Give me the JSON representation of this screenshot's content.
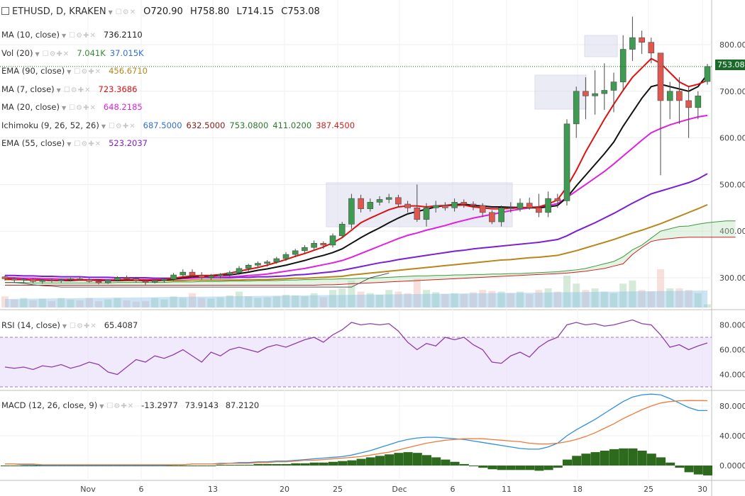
{
  "header": {
    "symbol": "ETHUSD, D, KRAKEN",
    "open": "O720.90",
    "high": "H758.80",
    "low": "L714.15",
    "close": "C753.08"
  },
  "legends": [
    {
      "key": "ma10",
      "label": "MA (10, close)",
      "values": [
        "736.2110"
      ],
      "colors": [
        "#222222"
      ]
    },
    {
      "key": "vol",
      "label": "Vol (20)",
      "values": [
        "7.041K",
        "37.015K"
      ],
      "colors": [
        "#3a8a3a",
        "#2f6fd6"
      ]
    },
    {
      "key": "ema90",
      "label": "EMA (90, close)",
      "values": [
        "456.6710"
      ],
      "colors": [
        "#b8861b"
      ]
    },
    {
      "key": "ma7",
      "label": "MA (7, close)",
      "values": [
        "723.3686"
      ],
      "colors": [
        "#e01010"
      ]
    },
    {
      "key": "ma20",
      "label": "MA (20, close)",
      "values": [
        "648.2185"
      ],
      "colors": [
        "#e020e0"
      ]
    },
    {
      "key": "ichi",
      "label": "Ichimoku (9, 26, 52, 26)",
      "values": [
        "687.5000",
        "632.5000",
        "753.0800",
        "411.0200",
        "387.4500"
      ],
      "colors": [
        "#2f6fd6",
        "#8b1a1a",
        "#2a7a2a",
        "#2a7a2a",
        "#d02020"
      ]
    },
    {
      "key": "ema55",
      "label": "EMA (55, close)",
      "values": [
        "523.2037"
      ],
      "colors": [
        "#7b1fd6"
      ]
    }
  ],
  "rsi_legend": {
    "label": "RSI (14, close)",
    "value": "65.4087",
    "color": "#222222"
  },
  "macd_legend": {
    "label": "MACD (12, 26, close, 9)",
    "values": [
      "-13.2977",
      "73.9143",
      "87.2120"
    ],
    "colors": [
      "#2a7a2a",
      "#2f6fd6",
      "#e0602a"
    ]
  },
  "price_badge": "753.08",
  "colors": {
    "up": "#3f9a52",
    "down": "#e0574f",
    "ma10": "#111111",
    "ma7": "#e01010",
    "ma20": "#e020e0",
    "ema55": "#7b1fd6",
    "ema90": "#b8861b",
    "rsi": "#8e3ea8",
    "macd": "#2f8fe0",
    "signal": "#f07a3a",
    "hist": "#2d6a1e",
    "volume": "#8fc3e6"
  },
  "chart_data": {
    "type": "candlestick",
    "x_ticks": [
      "Nov",
      "6",
      "13",
      "20",
      "25",
      "Dec",
      "6",
      "11",
      "18",
      "25",
      "30"
    ],
    "y_ticks": [
      "300.00",
      "400.00",
      "500.00",
      "600.00",
      "700.00",
      "800.00"
    ],
    "rsi_ticks": [
      "40.0000",
      "60.0000",
      "80.0000"
    ],
    "macd_ticks": [
      "0.0000",
      "40.0000",
      "80.0000"
    ],
    "ohlc": [
      [
        302,
        305,
        294,
        298
      ],
      [
        298,
        301,
        290,
        295
      ],
      [
        295,
        300,
        289,
        297
      ],
      [
        297,
        299,
        288,
        292
      ],
      [
        292,
        297,
        287,
        295
      ],
      [
        295,
        298,
        290,
        293
      ],
      [
        293,
        298,
        289,
        296
      ],
      [
        296,
        300,
        292,
        298
      ],
      [
        298,
        302,
        294,
        296
      ],
      [
        296,
        299,
        290,
        292
      ],
      [
        292,
        296,
        286,
        289
      ],
      [
        289,
        297,
        287,
        295
      ],
      [
        295,
        303,
        292,
        300
      ],
      [
        300,
        305,
        295,
        298
      ],
      [
        298,
        302,
        290,
        293
      ],
      [
        293,
        297,
        285,
        290
      ],
      [
        290,
        296,
        288,
        294
      ],
      [
        294,
        300,
        290,
        297
      ],
      [
        297,
        310,
        293,
        306
      ],
      [
        306,
        318,
        302,
        312
      ],
      [
        312,
        318,
        300,
        305
      ],
      [
        305,
        312,
        296,
        300
      ],
      [
        300,
        308,
        295,
        304
      ],
      [
        304,
        310,
        298,
        307
      ],
      [
        307,
        315,
        302,
        311
      ],
      [
        311,
        325,
        306,
        320
      ],
      [
        320,
        330,
        314,
        327
      ],
      [
        327,
        335,
        322,
        331
      ],
      [
        331,
        338,
        324,
        334
      ],
      [
        334,
        345,
        330,
        341
      ],
      [
        341,
        355,
        336,
        350
      ],
      [
        350,
        362,
        344,
        358
      ],
      [
        358,
        370,
        352,
        365
      ],
      [
        365,
        380,
        360,
        374
      ],
      [
        374,
        378,
        362,
        370
      ],
      [
        370,
        395,
        365,
        390
      ],
      [
        390,
        420,
        385,
        415
      ],
      [
        415,
        480,
        405,
        470
      ],
      [
        470,
        478,
        440,
        448
      ],
      [
        448,
        470,
        442,
        462
      ],
      [
        462,
        475,
        455,
        468
      ],
      [
        468,
        480,
        460,
        472
      ],
      [
        472,
        478,
        452,
        458
      ],
      [
        458,
        465,
        440,
        450
      ],
      [
        450,
        500,
        420,
        425
      ],
      [
        425,
        460,
        410,
        450
      ],
      [
        450,
        465,
        440,
        455
      ],
      [
        455,
        462,
        444,
        450
      ],
      [
        450,
        470,
        442,
        462
      ],
      [
        462,
        468,
        450,
        458
      ],
      [
        458,
        464,
        445,
        455
      ],
      [
        455,
        460,
        430,
        440
      ],
      [
        440,
        445,
        415,
        420
      ],
      [
        420,
        455,
        410,
        450
      ],
      [
        450,
        462,
        440,
        448
      ],
      [
        448,
        470,
        442,
        460
      ],
      [
        460,
        472,
        446,
        450
      ],
      [
        450,
        480,
        430,
        440
      ],
      [
        440,
        485,
        430,
        470
      ],
      [
        470,
        480,
        450,
        465
      ],
      [
        465,
        640,
        455,
        630
      ],
      [
        630,
        710,
        600,
        700
      ],
      [
        700,
        730,
        640,
        690
      ],
      [
        690,
        745,
        650,
        695
      ],
      [
        695,
        760,
        660,
        702
      ],
      [
        702,
        740,
        655,
        720
      ],
      [
        720,
        820,
        700,
        790
      ],
      [
        790,
        860,
        765,
        815
      ],
      [
        815,
        830,
        780,
        805
      ],
      [
        805,
        815,
        760,
        782
      ],
      [
        782,
        780,
        520,
        680
      ],
      [
        680,
        720,
        640,
        700
      ],
      [
        700,
        730,
        630,
        680
      ],
      [
        680,
        710,
        600,
        665
      ],
      [
        665,
        700,
        640,
        690
      ],
      [
        720.9,
        758.8,
        714.15,
        753.08
      ]
    ],
    "ma10": [
      298,
      297,
      296,
      295,
      295,
      294,
      294,
      294,
      295,
      295,
      295,
      294,
      294,
      295,
      295,
      294,
      294,
      295,
      297,
      300,
      302,
      303,
      304,
      305,
      306,
      309,
      312,
      316,
      319,
      323,
      327,
      332,
      337,
      343,
      348,
      354,
      362,
      374,
      386,
      397,
      407,
      418,
      428,
      437,
      442,
      447,
      452,
      455,
      457,
      458,
      455,
      454,
      452,
      452,
      451,
      451,
      450,
      450,
      452,
      455,
      472,
      497,
      520,
      543,
      566,
      591,
      625,
      655,
      685,
      710,
      715,
      710,
      705,
      700,
      710,
      736.2
    ],
    "ma7": [
      298,
      297,
      296,
      295,
      295,
      294,
      294,
      295,
      295,
      295,
      294,
      294,
      295,
      296,
      296,
      295,
      295,
      296,
      299,
      302,
      304,
      305,
      305,
      307,
      310,
      314,
      318,
      322,
      327,
      333,
      339,
      346,
      352,
      359,
      366,
      375,
      386,
      402,
      418,
      428,
      437,
      446,
      452,
      454,
      454,
      452,
      454,
      455,
      455,
      456,
      452,
      450,
      448,
      448,
      449,
      450,
      451,
      452,
      458,
      467,
      495,
      530,
      570,
      605,
      640,
      672,
      702,
      730,
      750,
      770,
      760,
      740,
      720,
      710,
      715,
      723.4
    ],
    "ma20": [
      300,
      300,
      299,
      299,
      298,
      298,
      297,
      297,
      296,
      296,
      296,
      296,
      296,
      296,
      296,
      296,
      296,
      296,
      297,
      298,
      299,
      300,
      301,
      301,
      302,
      303,
      305,
      306,
      308,
      311,
      314,
      317,
      320,
      324,
      328,
      332,
      337,
      344,
      352,
      360,
      368,
      376,
      384,
      391,
      396,
      402,
      407,
      412,
      418,
      423,
      428,
      432,
      436,
      440,
      444,
      447,
      450,
      452,
      455,
      459,
      472,
      486,
      500,
      514,
      528,
      544,
      561,
      578,
      595,
      611,
      620,
      628,
      634,
      640,
      645,
      648.2
    ],
    "ema55": [
      305,
      305,
      304,
      304,
      303,
      303,
      302,
      302,
      302,
      301,
      301,
      301,
      300,
      300,
      300,
      300,
      299,
      299,
      299,
      300,
      300,
      300,
      300,
      300,
      300,
      301,
      301,
      302,
      302,
      303,
      304,
      306,
      307,
      309,
      311,
      313,
      316,
      320,
      324,
      328,
      332,
      335,
      339,
      342,
      345,
      348,
      351,
      354,
      357,
      359,
      362,
      364,
      366,
      368,
      370,
      372,
      374,
      376,
      379,
      382,
      390,
      400,
      409,
      418,
      428,
      438,
      449,
      460,
      470,
      480,
      486,
      492,
      498,
      504,
      512,
      523.2
    ],
    "ema90": [
      296,
      296,
      296,
      295,
      295,
      295,
      295,
      295,
      295,
      295,
      295,
      295,
      294,
      294,
      294,
      294,
      294,
      294,
      294,
      294,
      295,
      295,
      295,
      295,
      295,
      295,
      296,
      296,
      296,
      297,
      298,
      299,
      299,
      300,
      301,
      302,
      303,
      306,
      308,
      310,
      312,
      314,
      316,
      318,
      320,
      322,
      324,
      326,
      328,
      330,
      332,
      334,
      336,
      338,
      339,
      341,
      343,
      344,
      346,
      348,
      353,
      358,
      364,
      370,
      376,
      382,
      389,
      396,
      402,
      409,
      416,
      424,
      432,
      440,
      448,
      456.7
    ],
    "ichi_a": [
      290,
      290,
      290,
      289,
      289,
      289,
      289,
      289,
      289,
      289,
      289,
      289,
      290,
      290,
      290,
      290,
      290,
      290,
      291,
      291,
      291,
      292,
      292,
      292,
      293,
      293,
      293,
      294,
      294,
      294,
      295,
      295,
      296,
      296,
      297,
      297,
      298,
      298,
      299,
      299,
      300,
      301,
      302,
      303,
      304,
      304,
      305,
      305,
      306,
      306,
      307,
      307,
      308,
      308,
      309,
      309,
      310,
      311,
      312,
      313,
      315,
      317,
      320,
      325,
      330,
      335,
      345,
      360,
      370,
      385,
      400,
      405,
      410,
      411,
      415,
      418,
      420,
      422,
      422
    ],
    "ichi_b": [
      284,
      284,
      284,
      284,
      284,
      284,
      284,
      284,
      284,
      284,
      284,
      284,
      284,
      284,
      284,
      284,
      284,
      284,
      284,
      284,
      284,
      284,
      284,
      284,
      284,
      284,
      284,
      284,
      284,
      284,
      284,
      284,
      284,
      284,
      285,
      285,
      286,
      287,
      288,
      289,
      290,
      291,
      292,
      293,
      294,
      295,
      296,
      297,
      298,
      299,
      300,
      301,
      302,
      303,
      304,
      305,
      306,
      307,
      308,
      309,
      310,
      312,
      314,
      317,
      320,
      325,
      330,
      350,
      365,
      378,
      382,
      384,
      386,
      387,
      387,
      387,
      387,
      387,
      387
    ],
    "chikou": [
      290,
      290,
      288,
      285,
      283,
      282,
      280,
      280,
      280,
      280,
      280,
      280,
      280,
      280,
      280,
      280,
      280,
      280,
      280,
      280,
      280,
      280,
      280,
      280,
      280,
      280,
      280,
      280,
      280,
      280,
      280,
      280,
      280,
      280,
      280,
      280,
      280,
      280,
      290,
      300,
      305,
      310
    ],
    "volume": [
      0.35,
      0.25,
      0.3,
      0.22,
      0.28,
      0.2,
      0.3,
      0.25,
      0.22,
      0.3,
      0.2,
      0.25,
      0.3,
      0.22,
      0.18,
      0.2,
      0.3,
      0.25,
      0.35,
      0.3,
      0.45,
      0.3,
      0.28,
      0.32,
      0.38,
      0.5,
      0.35,
      0.3,
      0.32,
      0.35,
      0.4,
      0.38,
      0.35,
      0.45,
      0.32,
      0.55,
      0.6,
      0.85,
      0.5,
      0.45,
      0.4,
      0.55,
      0.5,
      0.45,
      0.9,
      0.55,
      0.48,
      0.42,
      0.45,
      0.42,
      0.48,
      0.55,
      0.52,
      0.5,
      0.45,
      0.5,
      0.42,
      0.55,
      0.6,
      0.5,
      1.0,
      0.75,
      0.55,
      0.6,
      0.5,
      0.45,
      0.75,
      0.85,
      0.55,
      0.5,
      1.2,
      0.6,
      0.6,
      0.55,
      0.45,
      0.1
    ],
    "rsi": [
      46,
      45,
      46,
      44,
      47,
      46,
      48,
      45,
      47,
      50,
      48,
      42,
      40,
      46,
      52,
      50,
      55,
      53,
      56,
      60,
      55,
      50,
      58,
      55,
      60,
      62,
      60,
      58,
      62,
      64,
      62,
      65,
      68,
      70,
      66,
      72,
      76,
      82,
      80,
      81,
      80,
      81,
      75,
      66,
      60,
      65,
      63,
      70,
      68,
      70,
      64,
      60,
      50,
      49,
      55,
      58,
      54,
      62,
      67,
      70,
      80,
      82,
      80,
      81,
      79,
      80,
      82,
      84,
      81,
      80,
      72,
      62,
      64,
      60,
      63,
      65.4
    ],
    "macd": [
      2,
      2,
      1,
      1,
      0,
      0,
      0,
      0,
      0,
      0,
      0,
      0,
      0,
      0,
      0,
      0,
      0,
      0,
      1,
      1,
      2,
      2,
      2,
      3,
      3,
      4,
      4,
      5,
      5,
      6,
      6,
      7,
      8,
      9,
      10,
      11,
      12,
      14,
      17,
      20,
      24,
      28,
      32,
      35,
      37,
      38,
      38,
      37,
      36,
      35,
      33,
      31,
      29,
      27,
      25,
      23,
      22,
      22,
      25,
      30,
      40,
      48,
      55,
      62,
      70,
      78,
      86,
      92,
      95,
      96,
      95,
      90,
      84,
      78,
      74,
      73.9
    ],
    "signal": [
      2,
      2,
      2,
      2,
      1,
      1,
      1,
      1,
      1,
      1,
      1,
      1,
      1,
      1,
      1,
      1,
      1,
      1,
      1,
      1,
      2,
      2,
      2,
      2,
      3,
      3,
      3,
      4,
      4,
      5,
      5,
      6,
      7,
      7,
      8,
      9,
      10,
      11,
      12,
      14,
      16,
      18,
      21,
      24,
      27,
      30,
      32,
      34,
      35,
      36,
      36,
      36,
      35,
      34,
      33,
      32,
      30,
      29,
      29,
      30,
      32,
      35,
      39,
      44,
      50,
      56,
      63,
      69,
      75,
      80,
      84,
      86,
      87,
      87.3,
      87.2,
      87.2
    ],
    "hist": [
      0,
      0,
      -1,
      -1,
      -1,
      -1,
      -1,
      -1,
      -1,
      -1,
      -1,
      -1,
      -1,
      -1,
      -1,
      -1,
      -1,
      -1,
      0,
      0,
      0,
      0,
      0,
      1,
      1,
      1,
      1,
      2,
      2,
      2,
      2,
      3,
      3,
      4,
      4,
      5,
      6,
      7,
      9,
      11,
      13,
      15,
      17,
      18,
      17,
      14,
      11,
      8,
      5,
      2,
      -1,
      -3,
      -5,
      -6,
      -6,
      -6,
      -6,
      -7,
      -6,
      -3,
      8,
      13,
      16,
      18,
      20,
      22,
      23,
      23,
      20,
      16,
      11,
      4,
      -3,
      -9,
      -12,
      -13.3
    ]
  }
}
